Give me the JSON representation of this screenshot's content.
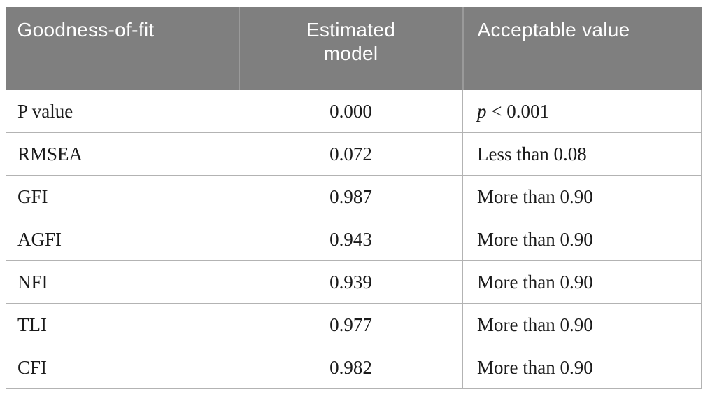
{
  "table": {
    "headers": {
      "metric": "Goodness-of-fit",
      "estimated": "Estimated model",
      "acceptable": "Acceptable value"
    },
    "rows": [
      {
        "metric": "P value",
        "estimated": "0.000",
        "acc_italic": "p",
        "acc_text": " < 0.001"
      },
      {
        "metric": "RMSEA",
        "estimated": "0.072",
        "acc_italic": "",
        "acc_text": "Less than 0.08"
      },
      {
        "metric": "GFI",
        "estimated": "0.987",
        "acc_italic": "",
        "acc_text": "More than 0.90"
      },
      {
        "metric": "AGFI",
        "estimated": "0.943",
        "acc_italic": "",
        "acc_text": "More than 0.90"
      },
      {
        "metric": "NFI",
        "estimated": "0.939",
        "acc_italic": "",
        "acc_text": "More than 0.90"
      },
      {
        "metric": "TLI",
        "estimated": "0.977",
        "acc_italic": "",
        "acc_text": "More than 0.90"
      },
      {
        "metric": "CFI",
        "estimated": "0.982",
        "acc_italic": "",
        "acc_text": "More than 0.90"
      }
    ]
  },
  "colors": {
    "header_bg": "#7f7f7f",
    "header_text": "#ffffff",
    "header_divider": "#9a9a9a",
    "border": "#b3b3b3",
    "body_text": "#1a1a1a",
    "page_bg": "#ffffff"
  },
  "chart_data": {
    "type": "table",
    "columns": [
      "Goodness-of-fit",
      "Estimated model",
      "Acceptable value"
    ],
    "rows": [
      [
        "P value",
        "0.000",
        "p < 0.001"
      ],
      [
        "RMSEA",
        "0.072",
        "Less than 0.08"
      ],
      [
        "GFI",
        "0.987",
        "More than 0.90"
      ],
      [
        "AGFI",
        "0.943",
        "More than 0.90"
      ],
      [
        "NFI",
        "0.939",
        "More than 0.90"
      ],
      [
        "TLI",
        "0.977",
        "More than 0.90"
      ],
      [
        "CFI",
        "0.982",
        "More than 0.90"
      ]
    ]
  }
}
